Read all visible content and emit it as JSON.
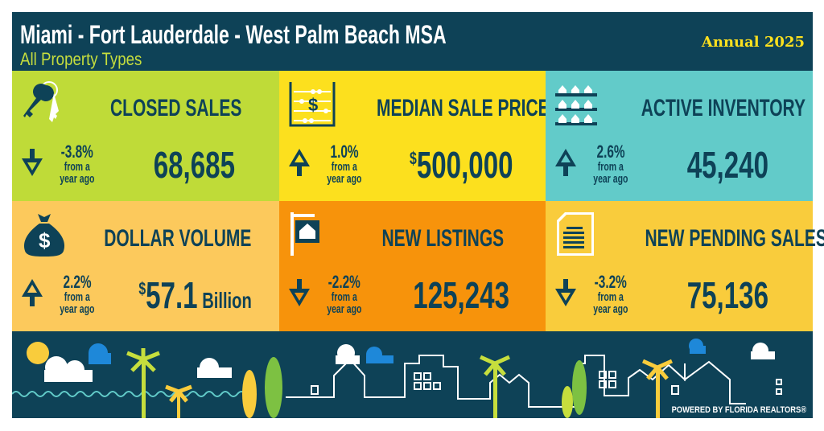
{
  "header": {
    "title": "Miami - Fort Lauderdale - West Palm Beach MSA",
    "subtitle": "All Property Types",
    "period": "Annual 2025"
  },
  "tiles": [
    {
      "label": "CLOSED SALES",
      "change": "-3.8%",
      "direction": "down",
      "from": "from a",
      "ago": "year ago",
      "value": "68,685",
      "color": "#bfdb38",
      "icon": "keys-icon"
    },
    {
      "label": "MEDIAN SALE PRICE",
      "change": "1.0%",
      "direction": "up",
      "from": "from a",
      "ago": "year ago",
      "value_prefix": "$",
      "value": "500,000",
      "color": "#fce01e",
      "icon": "abacus-icon"
    },
    {
      "label": "ACTIVE INVENTORY",
      "change": "2.6%",
      "direction": "up",
      "from": "from a",
      "ago": "year ago",
      "value": "45,240",
      "color": "#62cbc9",
      "icon": "houses-grid-icon"
    },
    {
      "label": "DOLLAR VOLUME",
      "change": "2.2%",
      "direction": "up",
      "from": "from a",
      "ago": "year ago",
      "value_prefix": "$",
      "value": "57.1",
      "value_suffix": " Billion",
      "color": "#fcc95c",
      "icon": "money-bag-icon"
    },
    {
      "label": "NEW LISTINGS",
      "change": "-2.2%",
      "direction": "down",
      "from": "from a",
      "ago": "year ago",
      "value": "125,243",
      "color": "#f7930b",
      "icon": "house-sign-icon"
    },
    {
      "label": "NEW PENDING SALES",
      "change": "-3.2%",
      "direction": "down",
      "from": "from a",
      "ago": "year ago",
      "value": "75,136",
      "color": "#f9cc3c",
      "icon": "document-icon"
    }
  ],
  "footer": {
    "powered": "POWERED BY FLORIDA REALTORS®"
  }
}
